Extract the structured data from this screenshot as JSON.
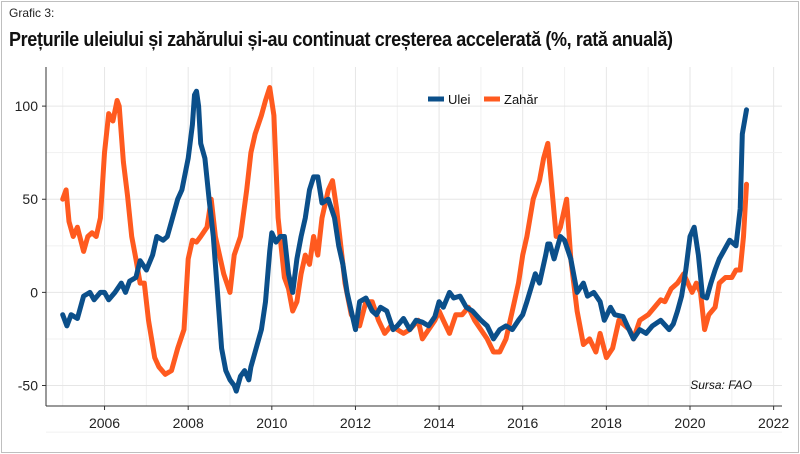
{
  "caption": "Grafic 3:",
  "title": "Prețurile uleiului și zahărului și-au continuat creșterea accelerată (%, rată anuală)",
  "source": "Sursa: FAO",
  "colors": {
    "ulei": "#0b4f8a",
    "zahar": "#ff5a1f",
    "grid": "#e6e6e6",
    "axis": "#333333"
  },
  "chart_data": {
    "type": "line",
    "xlim": [
      2004.6,
      2022.2
    ],
    "ylim": [
      -61,
      121
    ],
    "x_ticks": [
      2006,
      2008,
      2010,
      2012,
      2014,
      2016,
      2018,
      2020,
      2022
    ],
    "y_ticks": [
      -50,
      0,
      50,
      100
    ],
    "grid": true,
    "legend_position": "top-center",
    "series": [
      {
        "name": "Ulei",
        "color": "#0b4f8a",
        "points": [
          [
            2005.0,
            -12
          ],
          [
            2005.1,
            -18
          ],
          [
            2005.2,
            -12
          ],
          [
            2005.35,
            -14
          ],
          [
            2005.5,
            -2
          ],
          [
            2005.65,
            0
          ],
          [
            2005.75,
            -4
          ],
          [
            2005.9,
            0
          ],
          [
            2006.0,
            0
          ],
          [
            2006.1,
            -4
          ],
          [
            2006.25,
            0
          ],
          [
            2006.4,
            5
          ],
          [
            2006.5,
            0
          ],
          [
            2006.6,
            6
          ],
          [
            2006.75,
            8
          ],
          [
            2006.85,
            17
          ],
          [
            2007.0,
            12
          ],
          [
            2007.15,
            20
          ],
          [
            2007.25,
            30
          ],
          [
            2007.4,
            28
          ],
          [
            2007.5,
            30
          ],
          [
            2007.6,
            38
          ],
          [
            2007.75,
            50
          ],
          [
            2007.85,
            55
          ],
          [
            2008.0,
            72
          ],
          [
            2008.1,
            90
          ],
          [
            2008.15,
            106
          ],
          [
            2008.2,
            108
          ],
          [
            2008.25,
            100
          ],
          [
            2008.3,
            80
          ],
          [
            2008.4,
            72
          ],
          [
            2008.5,
            50
          ],
          [
            2008.6,
            30
          ],
          [
            2008.7,
            0
          ],
          [
            2008.8,
            -30
          ],
          [
            2008.9,
            -42
          ],
          [
            2009.0,
            -47
          ],
          [
            2009.1,
            -50
          ],
          [
            2009.15,
            -53
          ],
          [
            2009.25,
            -45
          ],
          [
            2009.35,
            -42
          ],
          [
            2009.45,
            -47
          ],
          [
            2009.5,
            -40
          ],
          [
            2009.6,
            -32
          ],
          [
            2009.75,
            -20
          ],
          [
            2009.85,
            -5
          ],
          [
            2009.95,
            22
          ],
          [
            2010.0,
            32
          ],
          [
            2010.1,
            27
          ],
          [
            2010.2,
            30
          ],
          [
            2010.3,
            30
          ],
          [
            2010.4,
            10
          ],
          [
            2010.5,
            0
          ],
          [
            2010.6,
            18
          ],
          [
            2010.7,
            30
          ],
          [
            2010.8,
            40
          ],
          [
            2010.9,
            55
          ],
          [
            2011.0,
            62
          ],
          [
            2011.1,
            62
          ],
          [
            2011.2,
            48
          ],
          [
            2011.35,
            50
          ],
          [
            2011.5,
            40
          ],
          [
            2011.6,
            25
          ],
          [
            2011.7,
            15
          ],
          [
            2011.8,
            0
          ],
          [
            2011.9,
            -10
          ],
          [
            2012.0,
            -20
          ],
          [
            2012.1,
            -5
          ],
          [
            2012.25,
            -3
          ],
          [
            2012.4,
            -10
          ],
          [
            2012.5,
            -12
          ],
          [
            2012.6,
            -8
          ],
          [
            2012.75,
            -10
          ],
          [
            2012.9,
            -20
          ],
          [
            2013.0,
            -18
          ],
          [
            2013.15,
            -14
          ],
          [
            2013.3,
            -20
          ],
          [
            2013.45,
            -15
          ],
          [
            2013.6,
            -16
          ],
          [
            2013.75,
            -18
          ],
          [
            2013.9,
            -13
          ],
          [
            2014.0,
            -5
          ],
          [
            2014.1,
            -8
          ],
          [
            2014.25,
            0
          ],
          [
            2014.35,
            -3
          ],
          [
            2014.5,
            -2
          ],
          [
            2014.65,
            -8
          ],
          [
            2014.8,
            -10
          ],
          [
            2015.0,
            -15
          ],
          [
            2015.15,
            -18
          ],
          [
            2015.3,
            -25
          ],
          [
            2015.45,
            -20
          ],
          [
            2015.6,
            -18
          ],
          [
            2015.75,
            -20
          ],
          [
            2015.9,
            -15
          ],
          [
            2016.0,
            -12
          ],
          [
            2016.1,
            -5
          ],
          [
            2016.3,
            10
          ],
          [
            2016.4,
            5
          ],
          [
            2016.55,
            20
          ],
          [
            2016.6,
            26
          ],
          [
            2016.65,
            26
          ],
          [
            2016.75,
            18
          ],
          [
            2016.9,
            30
          ],
          [
            2017.0,
            28
          ],
          [
            2017.15,
            18
          ],
          [
            2017.3,
            0
          ],
          [
            2017.45,
            5
          ],
          [
            2017.55,
            -2
          ],
          [
            2017.7,
            0
          ],
          [
            2017.85,
            -5
          ],
          [
            2017.95,
            -15
          ],
          [
            2018.1,
            -8
          ],
          [
            2018.2,
            -12
          ],
          [
            2018.4,
            -13
          ],
          [
            2018.5,
            -18
          ],
          [
            2018.65,
            -25
          ],
          [
            2018.8,
            -20
          ],
          [
            2018.95,
            -22
          ],
          [
            2019.1,
            -18
          ],
          [
            2019.3,
            -15
          ],
          [
            2019.5,
            -20
          ],
          [
            2019.6,
            -17
          ],
          [
            2019.7,
            -10
          ],
          [
            2019.8,
            -2
          ],
          [
            2019.9,
            12
          ],
          [
            2020.0,
            30
          ],
          [
            2020.1,
            35
          ],
          [
            2020.2,
            20
          ],
          [
            2020.3,
            -2
          ],
          [
            2020.4,
            -3
          ],
          [
            2020.5,
            5
          ],
          [
            2020.6,
            12
          ],
          [
            2020.7,
            18
          ],
          [
            2020.8,
            22
          ],
          [
            2020.95,
            28
          ],
          [
            2021.1,
            25
          ],
          [
            2021.2,
            45
          ],
          [
            2021.25,
            85
          ],
          [
            2021.35,
            98
          ]
        ]
      },
      {
        "name": "Zahăr",
        "color": "#ff5a1f",
        "points": [
          [
            2005.0,
            50
          ],
          [
            2005.08,
            55
          ],
          [
            2005.15,
            38
          ],
          [
            2005.25,
            30
          ],
          [
            2005.35,
            35
          ],
          [
            2005.5,
            22
          ],
          [
            2005.6,
            30
          ],
          [
            2005.7,
            32
          ],
          [
            2005.8,
            30
          ],
          [
            2005.9,
            40
          ],
          [
            2006.0,
            75
          ],
          [
            2006.1,
            96
          ],
          [
            2006.2,
            92
          ],
          [
            2006.3,
            103
          ],
          [
            2006.35,
            100
          ],
          [
            2006.45,
            70
          ],
          [
            2006.55,
            52
          ],
          [
            2006.65,
            30
          ],
          [
            2006.75,
            18
          ],
          [
            2006.85,
            5
          ],
          [
            2006.95,
            5
          ],
          [
            2007.05,
            -15
          ],
          [
            2007.2,
            -35
          ],
          [
            2007.3,
            -40
          ],
          [
            2007.45,
            -44
          ],
          [
            2007.6,
            -42
          ],
          [
            2007.75,
            -30
          ],
          [
            2007.9,
            -20
          ],
          [
            2008.0,
            18
          ],
          [
            2008.1,
            28
          ],
          [
            2008.2,
            27
          ],
          [
            2008.3,
            30
          ],
          [
            2008.45,
            35
          ],
          [
            2008.55,
            50
          ],
          [
            2008.65,
            30
          ],
          [
            2008.75,
            20
          ],
          [
            2008.85,
            10
          ],
          [
            2009.0,
            0
          ],
          [
            2009.1,
            20
          ],
          [
            2009.25,
            30
          ],
          [
            2009.4,
            55
          ],
          [
            2009.5,
            75
          ],
          [
            2009.6,
            85
          ],
          [
            2009.75,
            95
          ],
          [
            2009.85,
            103
          ],
          [
            2009.95,
            110
          ],
          [
            2010.05,
            95
          ],
          [
            2010.15,
            40
          ],
          [
            2010.3,
            8
          ],
          [
            2010.4,
            2
          ],
          [
            2010.5,
            -10
          ],
          [
            2010.6,
            -5
          ],
          [
            2010.7,
            10
          ],
          [
            2010.8,
            20
          ],
          [
            2010.9,
            15
          ],
          [
            2011.0,
            30
          ],
          [
            2011.1,
            20
          ],
          [
            2011.2,
            40
          ],
          [
            2011.35,
            55
          ],
          [
            2011.45,
            60
          ],
          [
            2011.55,
            45
          ],
          [
            2011.65,
            25
          ],
          [
            2011.75,
            5
          ],
          [
            2011.9,
            -12
          ],
          [
            2012.0,
            -15
          ],
          [
            2012.1,
            -18
          ],
          [
            2012.25,
            -5
          ],
          [
            2012.4,
            -5
          ],
          [
            2012.55,
            -15
          ],
          [
            2012.7,
            -22
          ],
          [
            2012.85,
            -18
          ],
          [
            2013.0,
            -20
          ],
          [
            2013.15,
            -22
          ],
          [
            2013.3,
            -20
          ],
          [
            2013.5,
            -15
          ],
          [
            2013.6,
            -25
          ],
          [
            2013.75,
            -20
          ],
          [
            2013.9,
            -15
          ],
          [
            2014.0,
            -10
          ],
          [
            2014.1,
            -15
          ],
          [
            2014.25,
            -22
          ],
          [
            2014.4,
            -12
          ],
          [
            2014.55,
            -12
          ],
          [
            2014.7,
            -8
          ],
          [
            2014.85,
            -15
          ],
          [
            2015.0,
            -20
          ],
          [
            2015.15,
            -25
          ],
          [
            2015.3,
            -32
          ],
          [
            2015.45,
            -32
          ],
          [
            2015.6,
            -25
          ],
          [
            2015.75,
            -10
          ],
          [
            2015.9,
            5
          ],
          [
            2016.0,
            20
          ],
          [
            2016.1,
            30
          ],
          [
            2016.25,
            50
          ],
          [
            2016.4,
            60
          ],
          [
            2016.5,
            72
          ],
          [
            2016.6,
            80
          ],
          [
            2016.7,
            55
          ],
          [
            2016.8,
            30
          ],
          [
            2016.9,
            35
          ],
          [
            2017.05,
            50
          ],
          [
            2017.15,
            18
          ],
          [
            2017.3,
            -10
          ],
          [
            2017.45,
            -28
          ],
          [
            2017.6,
            -25
          ],
          [
            2017.75,
            -32
          ],
          [
            2017.85,
            -22
          ],
          [
            2018.0,
            -35
          ],
          [
            2018.15,
            -30
          ],
          [
            2018.3,
            -15
          ],
          [
            2018.45,
            -18
          ],
          [
            2018.55,
            -20
          ],
          [
            2018.65,
            -25
          ],
          [
            2018.8,
            -15
          ],
          [
            2019.0,
            -12
          ],
          [
            2019.15,
            -8
          ],
          [
            2019.3,
            -4
          ],
          [
            2019.4,
            -5
          ],
          [
            2019.55,
            2
          ],
          [
            2019.7,
            5
          ],
          [
            2019.85,
            10
          ],
          [
            2019.95,
            5
          ],
          [
            2020.05,
            0
          ],
          [
            2020.15,
            5
          ],
          [
            2020.25,
            0
          ],
          [
            2020.35,
            -20
          ],
          [
            2020.45,
            -12
          ],
          [
            2020.6,
            -8
          ],
          [
            2020.7,
            5
          ],
          [
            2020.85,
            8
          ],
          [
            2021.0,
            8
          ],
          [
            2021.1,
            12
          ],
          [
            2021.2,
            12
          ],
          [
            2021.28,
            30
          ],
          [
            2021.35,
            58
          ]
        ]
      }
    ]
  }
}
